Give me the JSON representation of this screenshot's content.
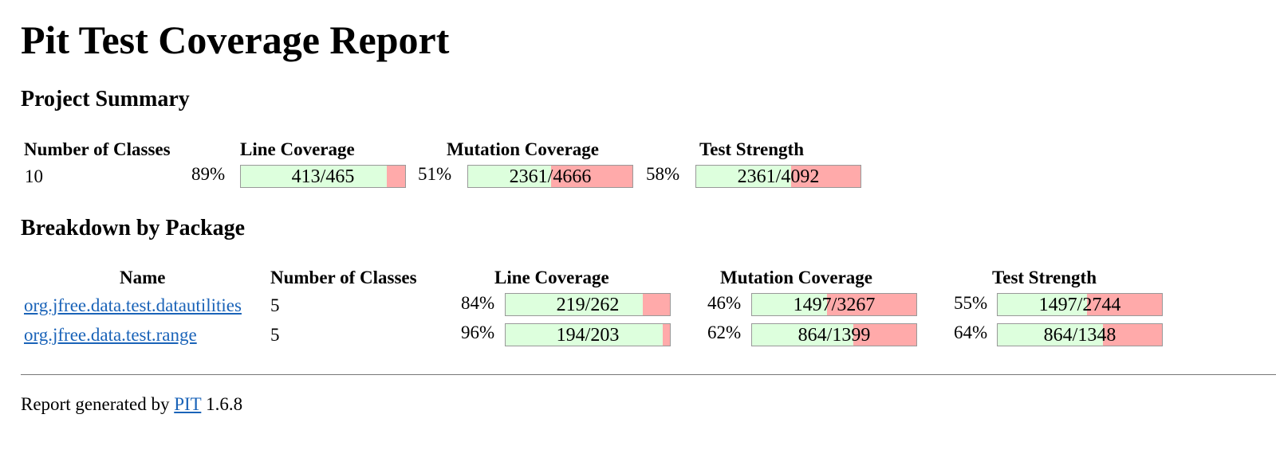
{
  "title": "Pit Test Coverage Report",
  "summary": {
    "heading": "Project Summary",
    "headers": {
      "classes": "Number of Classes",
      "line": "Line Coverage",
      "mutation": "Mutation Coverage",
      "strength": "Test Strength"
    },
    "classes": "10",
    "line": {
      "pct": "89%",
      "ratio": "413/465",
      "covered": 413,
      "total": 465
    },
    "mutation": {
      "pct": "51%",
      "ratio": "2361/4666",
      "covered": 2361,
      "total": 4666
    },
    "strength": {
      "pct": "58%",
      "ratio": "2361/4092",
      "covered": 2361,
      "total": 4092
    }
  },
  "breakdown": {
    "heading": "Breakdown by Package",
    "headers": {
      "name": "Name",
      "classes": "Number of Classes",
      "line": "Line Coverage",
      "mutation": "Mutation Coverage",
      "strength": "Test Strength"
    },
    "rows": [
      {
        "name": "org.jfree.data.test.datautilities",
        "classes": "5",
        "line": {
          "pct": "84%",
          "ratio": "219/262",
          "covered": 219,
          "total": 262
        },
        "mutation": {
          "pct": "46%",
          "ratio": "1497/3267",
          "covered": 1497,
          "total": 3267
        },
        "strength": {
          "pct": "55%",
          "ratio": "1497/2744",
          "covered": 1497,
          "total": 2744
        }
      },
      {
        "name": "org.jfree.data.test.range",
        "classes": "5",
        "line": {
          "pct": "96%",
          "ratio": "194/203",
          "covered": 194,
          "total": 203
        },
        "mutation": {
          "pct": "62%",
          "ratio": "864/1399",
          "covered": 864,
          "total": 1399
        },
        "strength": {
          "pct": "64%",
          "ratio": "864/1348",
          "covered": 864,
          "total": 1348
        }
      }
    ]
  },
  "footer": {
    "prefix": "Report generated by",
    "link": "PIT",
    "version": "1.6.8"
  },
  "colors": {
    "covered": "#ddffdd",
    "uncovered": "#ffaaaa",
    "link": "#1a63b8"
  }
}
